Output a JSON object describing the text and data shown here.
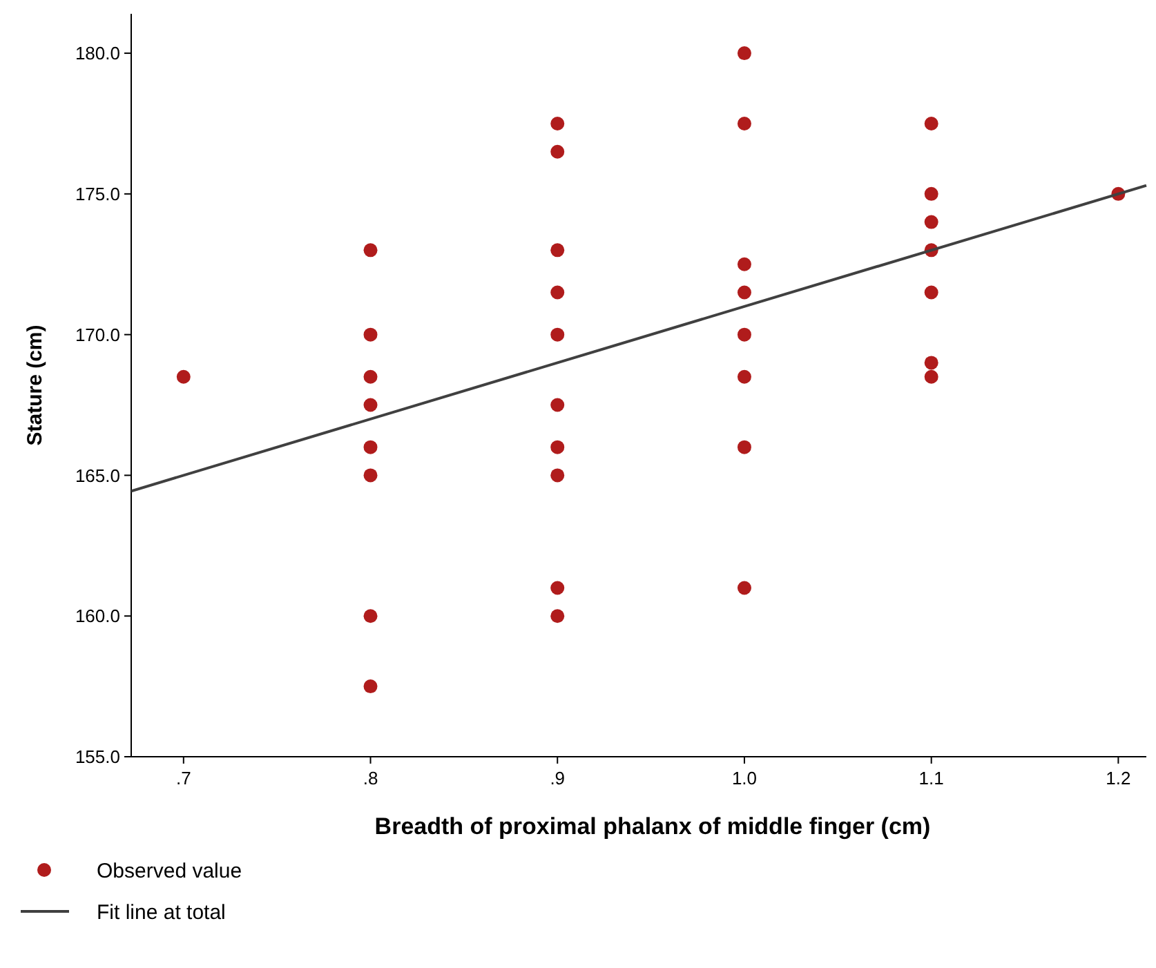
{
  "chart_data": {
    "type": "scatter",
    "xlabel": "Breadth of proximal phalanx of middle finger (cm)",
    "ylabel": "Stature (cm)",
    "xlim": [
      0.672,
      1.215
    ],
    "ylim": [
      155,
      181.4
    ],
    "xticks": [
      {
        "value": 0.7,
        "label": ".7"
      },
      {
        "value": 0.8,
        "label": ".8"
      },
      {
        "value": 0.9,
        "label": ".9"
      },
      {
        "value": 1.0,
        "label": "1.0"
      },
      {
        "value": 1.1,
        "label": "1.1"
      },
      {
        "value": 1.2,
        "label": "1.2"
      }
    ],
    "yticks": [
      {
        "value": 155,
        "label": "155.0"
      },
      {
        "value": 160,
        "label": "160.0"
      },
      {
        "value": 165,
        "label": "165.0"
      },
      {
        "value": 170,
        "label": "170.0"
      },
      {
        "value": 175,
        "label": "175.0"
      },
      {
        "value": 180,
        "label": "180.0"
      }
    ],
    "grid": false,
    "legend": "bottom",
    "marker": "circle",
    "series": [
      {
        "name": "Observed value",
        "color": "#b01c1c",
        "x": [
          0.7,
          0.8,
          0.8,
          0.8,
          0.8,
          0.8,
          0.8,
          0.8,
          0.8,
          0.9,
          0.9,
          0.9,
          0.9,
          0.9,
          0.9,
          0.9,
          0.9,
          0.9,
          0.9,
          1.0,
          1.0,
          1.0,
          1.0,
          1.0,
          1.0,
          1.0,
          1.0,
          1.1,
          1.1,
          1.1,
          1.1,
          1.1,
          1.1,
          1.1,
          1.2
        ],
        "values": [
          168.5,
          173,
          170,
          168.5,
          167.5,
          166,
          165,
          160,
          157.5,
          177.5,
          176.5,
          173,
          171.5,
          170,
          167.5,
          166,
          165,
          161,
          160,
          180,
          177.5,
          172.5,
          171.5,
          170,
          168.5,
          166,
          161,
          177.5,
          175,
          174,
          173,
          171.5,
          169,
          168.5,
          175
        ]
      },
      {
        "name": "Fit line at total",
        "type": "line",
        "color": "#404040",
        "marker": "none",
        "line_style": "solid",
        "x": [
          0.672,
          1.215
        ],
        "values": [
          164.44,
          175.3
        ]
      }
    ]
  }
}
